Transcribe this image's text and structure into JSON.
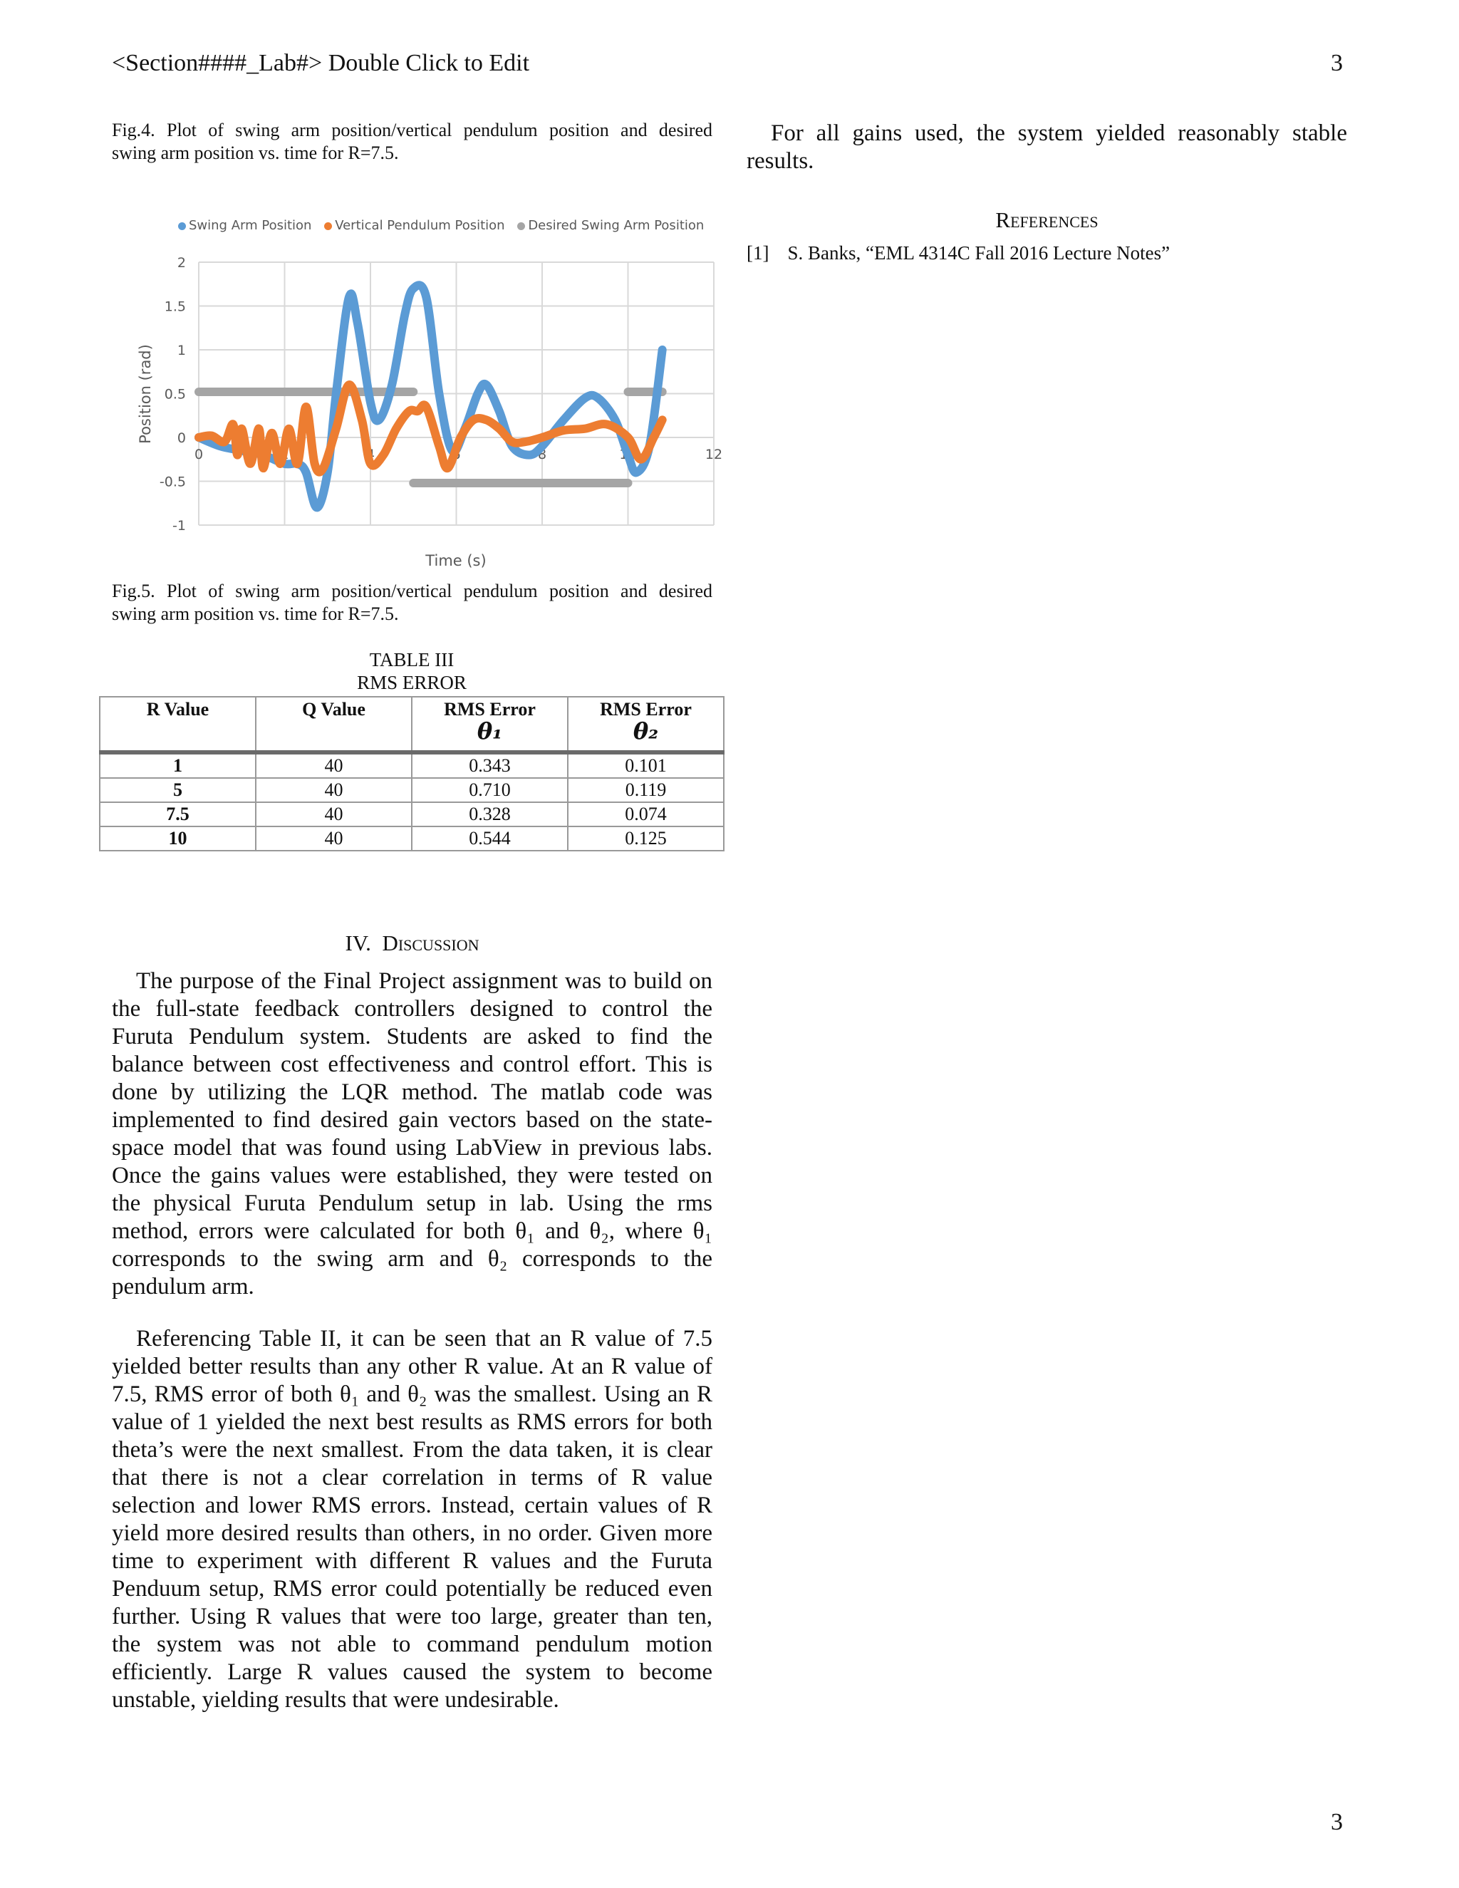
{
  "header": {
    "title": "<Section####_Lab#> Double Click to Edit",
    "page_number": "3"
  },
  "footer": {
    "page_number": "3"
  },
  "fig4_caption": [
    "Fig.4. Plot of swing arm position/vertical pendulum position and desired",
    "swing arm position vs. time for R=7.5."
  ],
  "fig5_caption": [
    "Fig.5. Plot of swing arm position/vertical pendulum position and desired",
    "swing arm position vs. time for R=7.5."
  ],
  "chart_data": {
    "type": "line",
    "title": "",
    "xlabel": "Time (s)",
    "ylabel": "Position (rad)",
    "xlim": [
      0,
      12
    ],
    "ylim": [
      -1,
      2
    ],
    "x_ticks": [
      "0",
      "2",
      "4",
      "6",
      "8",
      "10",
      "12"
    ],
    "y_ticks": [
      "2",
      "1.5",
      "1",
      "0.5",
      "0",
      "-0.5",
      "-1"
    ],
    "grid": true,
    "legend_position": "top",
    "series": [
      {
        "name": "Swing Arm Position",
        "color": "#5B9BD5",
        "x": [
          0,
          0.5,
          1,
          1.5,
          2,
          2.3,
          2.5,
          2.75,
          3,
          3.2,
          3.5,
          3.7,
          4,
          4.2,
          4.5,
          4.8,
          5,
          5.3,
          5.6,
          5.9,
          6.2,
          6.5,
          6.7,
          7,
          7.3,
          7.7,
          8,
          8.5,
          9,
          9.3,
          9.7,
          10,
          10.2,
          10.5,
          10.8
        ],
        "y": [
          0,
          -0.1,
          -0.15,
          -0.2,
          -0.3,
          -0.3,
          -0.4,
          -0.8,
          -0.4,
          0.5,
          1.6,
          1.3,
          0.4,
          0.2,
          0.6,
          1.4,
          1.7,
          1.6,
          0.5,
          -0.15,
          0.1,
          0.5,
          0.6,
          0.3,
          -0.1,
          -0.2,
          -0.1,
          0.2,
          0.45,
          0.45,
          0.2,
          -0.2,
          -0.4,
          -0.1,
          1.0
        ]
      },
      {
        "name": "Vertical Pendulum Position",
        "color": "#ED7D31",
        "x": [
          0,
          0.3,
          0.6,
          0.8,
          0.9,
          1.0,
          1.2,
          1.4,
          1.5,
          1.7,
          1.9,
          2.1,
          2.3,
          2.5,
          2.7,
          2.9,
          3.2,
          3.5,
          3.8,
          4,
          4.3,
          4.6,
          4.9,
          5.1,
          5.3,
          5.6,
          5.8,
          6.1,
          6.4,
          6.7,
          7,
          7.3,
          7.6,
          8,
          8.5,
          9,
          9.5,
          10,
          10.3,
          10.6,
          10.8
        ],
        "y": [
          0,
          0.02,
          -0.05,
          0.15,
          -0.2,
          0.1,
          -0.3,
          0.1,
          -0.35,
          0.05,
          -0.3,
          0.1,
          -0.3,
          0.35,
          -0.3,
          -0.35,
          0.1,
          0.6,
          0.2,
          -0.3,
          -0.2,
          0.1,
          0.3,
          0.3,
          0.35,
          -0.1,
          -0.35,
          0.0,
          0.2,
          0.2,
          0.1,
          -0.05,
          -0.05,
          0.0,
          0.08,
          0.1,
          0.15,
          0.0,
          -0.25,
          0.0,
          0.2
        ]
      },
      {
        "name": "Desired Swing Arm Position",
        "color": "#A5A5A5",
        "segments": [
          [
            [
              0,
              0.52
            ],
            [
              5,
              0.52
            ]
          ],
          [
            [
              5,
              -0.52
            ],
            [
              10,
              -0.52
            ]
          ],
          [
            [
              10,
              0.52
            ],
            [
              10.8,
              0.52
            ]
          ]
        ]
      }
    ]
  },
  "table": {
    "title": "TABLE III",
    "subtitle": "RMS ERROR",
    "headers": [
      "R Value",
      "Q Value",
      "RMS Error",
      "RMS Error"
    ],
    "header_symbols": [
      "",
      "",
      "θ₁",
      "θ₂"
    ],
    "rows": [
      [
        "1",
        "40",
        "0.343",
        "0.101"
      ],
      [
        "5",
        "40",
        "0.710",
        "0.119"
      ],
      [
        "7.5",
        "40",
        "0.328",
        "0.074"
      ],
      [
        "10",
        "40",
        "0.544",
        "0.125"
      ]
    ]
  },
  "discussion": {
    "number": "IV.",
    "title": "Discussion",
    "paragraphs": [
      [
        "The purpose of the Final Project assignment was to build on",
        "the full-state feedback controllers designed to control the",
        "Furuta Pendulum system. Students are asked to find the",
        "balance between cost effectiveness and control effort. This is",
        "done by utilizing the LQR method. The matlab code was",
        "implemented to find desired gain vectors based on the state-",
        "space model that was found using LabView in previous labs.",
        "Once the gains values were established, they were tested on",
        "the physical Furuta Pendulum setup in lab. Using the rms",
        "method, errors were calculated for both θ₁ and θ₂, where θ₁",
        "corresponds to the swing arm and θ₂ corresponds to the",
        "pendulum arm."
      ],
      [
        "Referencing Table II, it can be seen that an R value of 7.5",
        "yielded better results than any other R value. At an R value of",
        "7.5, RMS error of both θ₁ and θ₂ was the smallest. Using an R",
        "value of 1 yielded the next best results as RMS errors for both",
        "theta’s were the next smallest. From the data taken, it is clear",
        "that there is not a clear correlation in terms of R value",
        "selection and lower RMS errors. Instead, certain values of R",
        "yield more desired results than others, in no order. Given more",
        "time to experiment with different R values and the Furuta",
        "Penduum setup, RMS error could potentially be reduced even",
        "further. Using R values that were too large, greater than ten,",
        "the system was not able to command pendulum motion",
        "efficiently. Large R values caused the system to become",
        "unstable, yielding results that were undesirable."
      ]
    ]
  },
  "conclusion_text": [
    "For all gains used, the system yielded reasonably stable",
    "results."
  ],
  "references": {
    "title": "References",
    "items": [
      {
        "label": "[1]",
        "text": "S. Banks, “EML 4314C Fall 2016 Lecture Notes”"
      }
    ]
  }
}
